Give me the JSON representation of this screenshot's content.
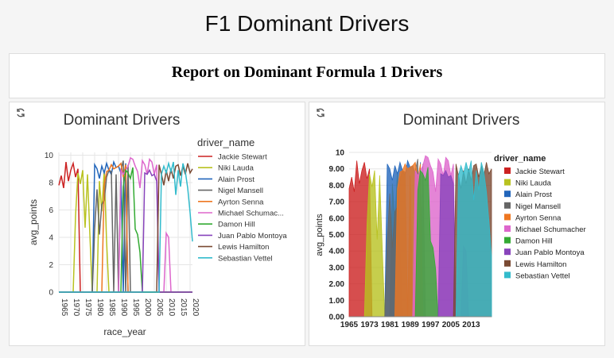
{
  "page_title": "F1 Dominant Drivers",
  "report_title": "Report on Dominant Formula 1 Drivers",
  "icons": {
    "refresh": "refresh-icon"
  },
  "chart_data": [
    {
      "type": "line",
      "title": "Dominant Drivers",
      "xlabel": "race_year",
      "ylabel": "avg_points",
      "legend_title": "driver_name",
      "legend_position": "right",
      "grid": true,
      "xlim": [
        1965,
        2021
      ],
      "ylim": [
        0,
        10.2
      ],
      "x_ticks": [
        "1965",
        "1970",
        "1975",
        "1980",
        "1985",
        "1990",
        "1995",
        "2000",
        "2005",
        "2010",
        "2015",
        "2020"
      ],
      "y_ticks": [
        "0",
        "2",
        "4",
        "6",
        "8",
        "10"
      ],
      "legend_labels": [
        "Jackie Stewart",
        "Niki Lauda",
        "Alain Prost",
        "Nigel Mansell",
        "Ayrton Senna",
        "Michael Schumac...",
        "Damon Hill",
        "Juan Pablo Montoya",
        "Lewis Hamilton",
        "Sebastian Vettel"
      ],
      "series": [
        {
          "name": "Jackie Stewart",
          "color": "#cc2222",
          "points": [
            [
              1965,
              7.8
            ],
            [
              1966,
              8.5
            ],
            [
              1967,
              7.6
            ],
            [
              1968,
              9.5
            ],
            [
              1969,
              8.1
            ],
            [
              1970,
              8.9
            ],
            [
              1971,
              9.4
            ],
            [
              1972,
              8.4
            ],
            [
              1973,
              9.0
            ],
            [
              1974,
              0
            ],
            [
              2021,
              0
            ]
          ]
        },
        {
          "name": "Niki Lauda",
          "color": "#b8c220",
          "points": [
            [
              1965,
              0
            ],
            [
              1971,
              0
            ],
            [
              1972,
              5.6
            ],
            [
              1973,
              8.7
            ],
            [
              1974,
              7.9
            ],
            [
              1975,
              8.9
            ],
            [
              1976,
              4.7
            ],
            [
              1977,
              8.6
            ],
            [
              1978,
              4.2
            ],
            [
              1979,
              0
            ],
            [
              1981,
              0
            ],
            [
              1982,
              8.1
            ],
            [
              1983,
              5.9
            ],
            [
              1984,
              8.8
            ],
            [
              1985,
              3.7
            ],
            [
              1986,
              0
            ],
            [
              2021,
              0
            ]
          ]
        },
        {
          "name": "Alain Prost",
          "color": "#2266bb",
          "points": [
            [
              1965,
              0
            ],
            [
              1979,
              0
            ],
            [
              1980,
              9.3
            ],
            [
              1981,
              9.0
            ],
            [
              1982,
              8.3
            ],
            [
              1983,
              9.2
            ],
            [
              1984,
              8.7
            ],
            [
              1985,
              9.4
            ],
            [
              1986,
              8.9
            ],
            [
              1987,
              8.6
            ],
            [
              1988,
              9.5
            ],
            [
              1989,
              9.1
            ],
            [
              1990,
              9.2
            ],
            [
              1991,
              8.7
            ],
            [
              1992,
              0
            ],
            [
              1993,
              9.4
            ],
            [
              1994,
              0
            ],
            [
              2021,
              0
            ]
          ]
        },
        {
          "name": "Nigel Mansell",
          "color": "#666666",
          "points": [
            [
              1965,
              0
            ],
            [
              1979,
              0
            ],
            [
              1980,
              4.6
            ],
            [
              1981,
              7.5
            ],
            [
              1982,
              4.2
            ],
            [
              1983,
              6.4
            ],
            [
              1984,
              6.7
            ],
            [
              1985,
              8.4
            ],
            [
              1986,
              8.9
            ],
            [
              1987,
              8.8
            ],
            [
              1988,
              0
            ],
            [
              1989,
              8.6
            ],
            [
              1990,
              0
            ],
            [
              1991,
              8.9
            ],
            [
              1992,
              9.6
            ],
            [
              1993,
              0
            ],
            [
              1994,
              9.3
            ],
            [
              1995,
              0
            ],
            [
              2021,
              0
            ]
          ]
        },
        {
          "name": "Ayrton Senna",
          "color": "#ee7722",
          "points": [
            [
              1965,
              0
            ],
            [
              1983,
              0
            ],
            [
              1984,
              7.8
            ],
            [
              1985,
              8.8
            ],
            [
              1986,
              8.9
            ],
            [
              1987,
              9.3
            ],
            [
              1988,
              9.0
            ],
            [
              1989,
              9.1
            ],
            [
              1990,
              9.2
            ],
            [
              1991,
              9.4
            ],
            [
              1992,
              8.4
            ],
            [
              1993,
              9.3
            ],
            [
              1994,
              0
            ],
            [
              2021,
              0
            ]
          ]
        },
        {
          "name": "Michael Schumac...",
          "color": "#dd66cc",
          "points": [
            [
              1965,
              0
            ],
            [
              1990,
              0
            ],
            [
              1991,
              8.9
            ],
            [
              1992,
              8.6
            ],
            [
              1993,
              8.9
            ],
            [
              1994,
              9.2
            ],
            [
              1995,
              9.8
            ],
            [
              1996,
              9.7
            ],
            [
              1997,
              9.2
            ],
            [
              1998,
              8.8
            ],
            [
              1999,
              7.6
            ],
            [
              2000,
              9.6
            ],
            [
              2001,
              9.3
            ],
            [
              2002,
              8.6
            ],
            [
              2003,
              9.7
            ],
            [
              2004,
              9.5
            ],
            [
              2005,
              8.6
            ],
            [
              2006,
              9.3
            ],
            [
              2007,
              0
            ],
            [
              2009,
              0
            ],
            [
              2010,
              4.3
            ],
            [
              2011,
              4.0
            ],
            [
              2012,
              0
            ],
            [
              2021,
              0
            ]
          ]
        },
        {
          "name": "Damon Hill",
          "color": "#33aa33",
          "points": [
            [
              1965,
              0
            ],
            [
              1991,
              0
            ],
            [
              1992,
              7.7
            ],
            [
              1993,
              8.9
            ],
            [
              1994,
              8.7
            ],
            [
              1995,
              8.3
            ],
            [
              1996,
              9.1
            ],
            [
              1997,
              4.6
            ],
            [
              1998,
              4.2
            ],
            [
              1999,
              2.9
            ],
            [
              2000,
              0
            ],
            [
              2021,
              0
            ]
          ]
        },
        {
          "name": "Juan Pablo Montoya",
          "color": "#8844bb",
          "points": [
            [
              1965,
              0
            ],
            [
              2000,
              0
            ],
            [
              2001,
              8.7
            ],
            [
              2002,
              8.6
            ],
            [
              2003,
              8.9
            ],
            [
              2004,
              8.5
            ],
            [
              2005,
              8.6
            ],
            [
              2006,
              8.1
            ],
            [
              2007,
              0
            ],
            [
              2021,
              0
            ]
          ]
        },
        {
          "name": "Lewis Hamilton",
          "color": "#7a4a33",
          "points": [
            [
              1965,
              0
            ],
            [
              2006,
              0
            ],
            [
              2007,
              9.3
            ],
            [
              2008,
              8.6
            ],
            [
              2009,
              7.8
            ],
            [
              2010,
              8.9
            ],
            [
              2011,
              8.1
            ],
            [
              2012,
              9.0
            ],
            [
              2013,
              8.3
            ],
            [
              2014,
              9.2
            ],
            [
              2015,
              9.3
            ],
            [
              2016,
              8.5
            ],
            [
              2017,
              9.2
            ],
            [
              2018,
              8.6
            ],
            [
              2019,
              9.4
            ],
            [
              2020,
              8.7
            ],
            [
              2021,
              9.0
            ]
          ]
        },
        {
          "name": "Sebastian Vettel",
          "color": "#33bbcc",
          "points": [
            [
              1965,
              0
            ],
            [
              2007,
              0
            ],
            [
              2008,
              8.6
            ],
            [
              2009,
              9.2
            ],
            [
              2010,
              8.7
            ],
            [
              2011,
              9.4
            ],
            [
              2012,
              8.8
            ],
            [
              2013,
              9.5
            ],
            [
              2014,
              7.1
            ],
            [
              2015,
              8.9
            ],
            [
              2016,
              7.7
            ],
            [
              2017,
              9.4
            ],
            [
              2018,
              8.8
            ],
            [
              2019,
              7.6
            ],
            [
              2020,
              5.8
            ],
            [
              2021,
              3.7
            ]
          ]
        }
      ]
    },
    {
      "type": "area",
      "title": "Dominant Drivers",
      "xlabel": "",
      "ylabel": "avg_points",
      "legend_title": "driver_name",
      "legend_position": "right",
      "grid": true,
      "xlim": [
        1965,
        2021
      ],
      "ylim": [
        0,
        10
      ],
      "x_ticks": [
        "1965",
        "1973",
        "1981",
        "1989",
        "1997",
        "2005",
        "2013"
      ],
      "y_ticks": [
        "0.00",
        "1.00",
        "2.00",
        "3.00",
        "4.00",
        "5.00",
        "6.00",
        "7.00",
        "8.00",
        "9.00",
        "10"
      ],
      "legend_labels": [
        "Jackie Stewart",
        "Niki Lauda",
        "Alain Prost",
        "Nigel Mansell",
        "Ayrton Senna",
        "Michael Schumacher",
        "Damon Hill",
        "Juan Pablo Montoya",
        "Lewis Hamilton",
        "Sebastian Vettel"
      ],
      "series_ref": "same values as first chart"
    }
  ]
}
